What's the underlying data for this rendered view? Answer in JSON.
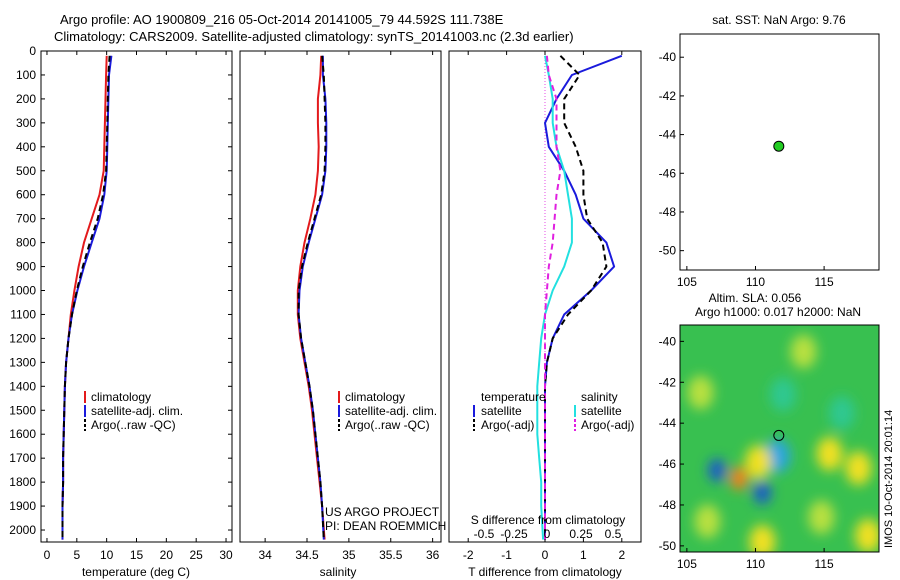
{
  "header": {
    "line1": "Argo profile: AO 1900809_216 05-Oct-2014 20141005_79 44.592S 111.738E",
    "line2": "Climatology: CARS2009. Satellite-adjusted climatology: synTS_20141003.nc (2.3d earlier)"
  },
  "colors": {
    "climatology": "#e31a1c",
    "satellite": "#1a1adc",
    "argo": "#000000",
    "satellite_salinity": "#22e0e0",
    "argo_salinity_adj": "#e020e0",
    "marker": "#22cc22"
  },
  "credits": {
    "project": "US ARGO PROJECT",
    "pi": "PI: DEAN ROEMMICH"
  },
  "chart_data": [
    {
      "id": "temperature",
      "type": "line",
      "xlabel": "temperature (deg C)",
      "xlim": [
        -1,
        31
      ],
      "xticks": [
        0,
        5,
        10,
        15,
        20,
        25,
        30
      ],
      "ylim": [
        0,
        2050
      ],
      "yticks": [
        0,
        100,
        200,
        300,
        400,
        500,
        600,
        700,
        800,
        900,
        1000,
        1100,
        1200,
        1300,
        1400,
        1500,
        1600,
        1700,
        1800,
        1900,
        2000
      ],
      "legend": [
        "climatology",
        "satellite-adj. clim.",
        "Argo(..raw -QC)"
      ],
      "series": [
        {
          "name": "climatology",
          "style": "solid",
          "color": "#e31a1c",
          "x": [
            10,
            9.9,
            9.8,
            9.7,
            9.6,
            9.5,
            8.8,
            7.5,
            6.2,
            5.3,
            4.6,
            4.0,
            3.6,
            3.2,
            3.0,
            2.9,
            2.8,
            2.7,
            2.7,
            2.6,
            2.6
          ],
          "y": [
            20,
            100,
            200,
            300,
            400,
            500,
            600,
            700,
            800,
            900,
            1000,
            1100,
            1200,
            1300,
            1400,
            1500,
            1600,
            1700,
            1800,
            1900,
            2040
          ]
        },
        {
          "name": "satellite-adj. clim.",
          "style": "solid",
          "color": "#1a1adc",
          "x": [
            10.8,
            10.4,
            10.3,
            10.2,
            10.1,
            10,
            9.6,
            8.8,
            7.5,
            6.2,
            5.1,
            4.2,
            3.6,
            3.2,
            3.0,
            2.9,
            2.8,
            2.7,
            2.7,
            2.6,
            2.6
          ],
          "y": [
            20,
            100,
            200,
            300,
            400,
            500,
            600,
            700,
            800,
            900,
            1000,
            1100,
            1200,
            1300,
            1400,
            1500,
            1600,
            1700,
            1800,
            1900,
            2040
          ]
        },
        {
          "name": "Argo(..raw -QC)",
          "style": "dash",
          "color": "#000000",
          "x": [
            10.5,
            10.3,
            10.2,
            10.1,
            10.0,
            9.9,
            9.4,
            8.5,
            7.2,
            6.0,
            5.0,
            4.2,
            3.6,
            3.2,
            3.0,
            2.9,
            2.8,
            2.7,
            2.7,
            2.6,
            2.6
          ],
          "y": [
            20,
            100,
            200,
            300,
            400,
            500,
            600,
            700,
            800,
            900,
            1000,
            1100,
            1200,
            1300,
            1400,
            1500,
            1600,
            1700,
            1800,
            1900,
            2040
          ]
        }
      ]
    },
    {
      "id": "salinity",
      "type": "line",
      "xlabel": "salinity",
      "xlim": [
        33.7,
        36.1
      ],
      "xticks": [
        34,
        34.5,
        35,
        35.5,
        36
      ],
      "xtick_labels": [
        "34",
        "34.5",
        "35",
        "35.5",
        "36"
      ],
      "ylim": [
        0,
        2050
      ],
      "legend": [
        "climatology",
        "satellite-adj. clim.",
        "Argo(..raw -QC)"
      ],
      "series": [
        {
          "name": "climatology",
          "style": "solid",
          "color": "#e31a1c",
          "x": [
            34.67,
            34.66,
            34.63,
            34.63,
            34.64,
            34.63,
            34.6,
            34.54,
            34.47,
            34.42,
            34.39,
            34.39,
            34.42,
            34.47,
            34.52,
            34.56,
            34.59,
            34.62,
            34.65,
            34.68,
            34.71
          ],
          "y": [
            20,
            100,
            200,
            300,
            400,
            500,
            600,
            700,
            800,
            900,
            1000,
            1100,
            1200,
            1300,
            1400,
            1500,
            1600,
            1700,
            1800,
            1900,
            2040
          ]
        },
        {
          "name": "satellite-adj. clim.",
          "style": "solid",
          "color": "#1a1adc",
          "x": [
            34.69,
            34.69,
            34.72,
            34.73,
            34.73,
            34.72,
            34.68,
            34.6,
            34.52,
            34.45,
            34.41,
            34.4,
            34.43,
            34.48,
            34.53,
            34.57,
            34.6,
            34.63,
            34.66,
            34.68,
            34.7
          ],
          "y": [
            20,
            100,
            200,
            300,
            400,
            500,
            600,
            700,
            800,
            900,
            1000,
            1100,
            1200,
            1300,
            1400,
            1500,
            1600,
            1700,
            1800,
            1900,
            2040
          ]
        },
        {
          "name": "Argo(..raw -QC)",
          "style": "dash",
          "color": "#000000",
          "x": [
            34.68,
            34.7,
            34.71,
            34.72,
            34.72,
            34.71,
            34.67,
            34.59,
            34.51,
            34.44,
            34.4,
            34.4,
            34.43,
            34.48,
            34.53,
            34.57,
            34.6,
            34.63,
            34.66,
            34.68,
            34.7
          ],
          "y": [
            20,
            100,
            200,
            300,
            400,
            500,
            600,
            700,
            800,
            900,
            1000,
            1100,
            1200,
            1300,
            1400,
            1500,
            1600,
            1700,
            1800,
            1900,
            2040
          ]
        }
      ]
    },
    {
      "id": "difference",
      "type": "line",
      "xlabel": "T difference from climatology",
      "xlim": [
        -2.5,
        2.5
      ],
      "xticks": [
        -2,
        -1,
        0,
        1,
        2
      ],
      "top_axis_label": "S difference from climatology",
      "top_ticks": [
        "-0.5",
        "-0.25",
        "0",
        "0.25",
        "0.5"
      ],
      "ylim": [
        0,
        2050
      ],
      "legend_headers": [
        "temperature",
        "salinity"
      ],
      "legend": [
        "satellite",
        "Argo(-adj)",
        "satellite",
        "Argo(-adj)"
      ],
      "series": [
        {
          "name": "temperature satellite",
          "style": "solid",
          "color": "#1a1adc",
          "x": [
            2.0,
            0.7,
            0.3,
            0.0,
            0.1,
            0.5,
            0.8,
            1.0,
            1.6,
            1.8,
            1.2,
            0.5,
            0.2,
            0.05,
            0.0,
            0.0,
            0.0,
            0.0,
            0.0,
            0.0,
            0.0
          ],
          "y": [
            20,
            100,
            200,
            300,
            400,
            500,
            600,
            700,
            800,
            900,
            1000,
            1100,
            1200,
            1300,
            1400,
            1500,
            1600,
            1700,
            1800,
            1900,
            2040
          ]
        },
        {
          "name": "temperature Argo(-adj)",
          "style": "dash",
          "color": "#000000",
          "x": [
            0.4,
            0.9,
            0.5,
            0.5,
            0.8,
            1.0,
            1.0,
            1.1,
            1.5,
            1.6,
            1.2,
            0.6,
            0.2,
            0.05,
            0.0,
            0.0,
            0.0,
            0.0,
            0.0,
            0.0,
            0.0
          ],
          "y": [
            20,
            100,
            200,
            300,
            400,
            500,
            600,
            700,
            800,
            900,
            1000,
            1100,
            1200,
            1300,
            1400,
            1500,
            1600,
            1700,
            1800,
            1900,
            2040
          ]
        },
        {
          "name": "salinity satellite",
          "style": "solid",
          "color": "#22e0e0",
          "x": [
            0.0,
            0.1,
            0.2,
            0.2,
            0.3,
            0.5,
            0.6,
            0.7,
            0.7,
            0.5,
            0.2,
            0.0,
            -0.1,
            -0.15,
            -0.2,
            -0.2,
            -0.2,
            -0.15,
            -0.1,
            -0.1,
            -0.05
          ],
          "y": [
            20,
            100,
            200,
            300,
            400,
            500,
            600,
            700,
            800,
            900,
            1000,
            1100,
            1200,
            1300,
            1400,
            1500,
            1600,
            1700,
            1800,
            1900,
            2040
          ]
        },
        {
          "name": "salinity Argo(-adj)",
          "style": "dash",
          "color": "#e020e0",
          "x": [
            0.05,
            0.1,
            0.3,
            0.3,
            0.3,
            0.4,
            0.3,
            0.25,
            0.2,
            0.1,
            0.05,
            0.0,
            0.0,
            0.0,
            0.0,
            0.0,
            0.0,
            0.0,
            0.0,
            0.0,
            0.0
          ],
          "y": [
            20,
            100,
            200,
            300,
            400,
            500,
            600,
            700,
            800,
            900,
            1000,
            1100,
            1200,
            1300,
            1400,
            1500,
            1600,
            1700,
            1800,
            1900,
            2040
          ]
        }
      ]
    },
    {
      "id": "sst-map",
      "type": "scatter",
      "title": "sat. SST: NaN Argo: 9.76",
      "xlim": [
        104.5,
        119
      ],
      "ylim": [
        -51,
        -38.8
      ],
      "xticks": [
        105,
        110,
        115
      ],
      "yticks": [
        -40,
        -42,
        -44,
        -46,
        -48,
        -50
      ],
      "points": [
        {
          "x": 111.7,
          "y": -44.6
        }
      ]
    },
    {
      "id": "sla-map",
      "type": "heatmap",
      "title_line1": "Altim. SLA: 0.056",
      "title_line2": "Argo h1000: 0.017 h2000: NaN",
      "side_label": "IMOS 10-Oct-2014 20:01:14",
      "xlim": [
        104.5,
        119
      ],
      "ylim": [
        -50.3,
        -39.2
      ],
      "xticks": [
        105,
        110,
        115
      ],
      "yticks": [
        -40,
        -42,
        -44,
        -46,
        -48,
        -50
      ],
      "point": {
        "x": 111.7,
        "y": -44.6
      },
      "anomalies": [
        {
          "x": 107.2,
          "y": -46.3,
          "v": -1.0
        },
        {
          "x": 110.5,
          "y": -47.4,
          "v": -1.0
        },
        {
          "x": 111.6,
          "y": -45.6,
          "v": -0.5
        },
        {
          "x": 108.8,
          "y": -46.7,
          "v": 1.0
        },
        {
          "x": 110.2,
          "y": -45.9,
          "v": 0.5
        },
        {
          "x": 117.5,
          "y": -46.2,
          "v": 0.6
        },
        {
          "x": 118.2,
          "y": -49.5,
          "v": 0.5
        },
        {
          "x": 106.0,
          "y": -42.5,
          "v": 0.35
        },
        {
          "x": 113.5,
          "y": -40.5,
          "v": 0.35
        },
        {
          "x": 110.5,
          "y": -49.8,
          "v": 0.45
        },
        {
          "x": 114.8,
          "y": -48.6,
          "v": 0.35
        },
        {
          "x": 106.5,
          "y": -48.8,
          "v": 0.3
        },
        {
          "x": 112.0,
          "y": -42.6,
          "v": -0.3
        },
        {
          "x": 116.3,
          "y": -43.5,
          "v": -0.3
        },
        {
          "x": 115.4,
          "y": -45.5,
          "v": 0.4
        }
      ]
    }
  ]
}
